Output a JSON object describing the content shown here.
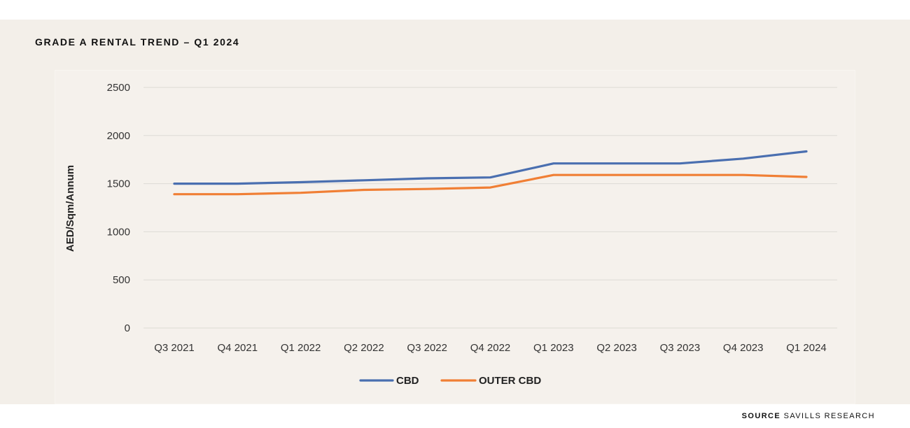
{
  "title": "GRADE A RENTAL TREND – Q1 2024",
  "source": {
    "key": "SOURCE",
    "value": "SAVILLS RESEARCH"
  },
  "chart_data": {
    "type": "line",
    "title": "GRADE A RENTAL TREND – Q1 2024",
    "xlabel": "",
    "ylabel": "AED/Sqm/Annum",
    "ylim": [
      0,
      2500
    ],
    "yticks": [
      0,
      500,
      1000,
      1500,
      2000,
      2500
    ],
    "grid": true,
    "legend": "bottom-center",
    "categories": [
      "Q3 2021",
      "Q4 2021",
      "Q1 2022",
      "Q2 2022",
      "Q3 2022",
      "Q4 2022",
      "Q1 2023",
      "Q2 2023",
      "Q3 2023",
      "Q4 2023",
      "Q1 2024"
    ],
    "series": [
      {
        "name": "CBD",
        "color": "#4a6fb0",
        "values": [
          1500,
          1500,
          1515,
          1535,
          1555,
          1565,
          1710,
          1710,
          1710,
          1760,
          1835
        ]
      },
      {
        "name": "OUTER CBD",
        "color": "#f07f35",
        "values": [
          1390,
          1390,
          1405,
          1435,
          1445,
          1460,
          1590,
          1590,
          1590,
          1590,
          1570
        ]
      }
    ]
  }
}
